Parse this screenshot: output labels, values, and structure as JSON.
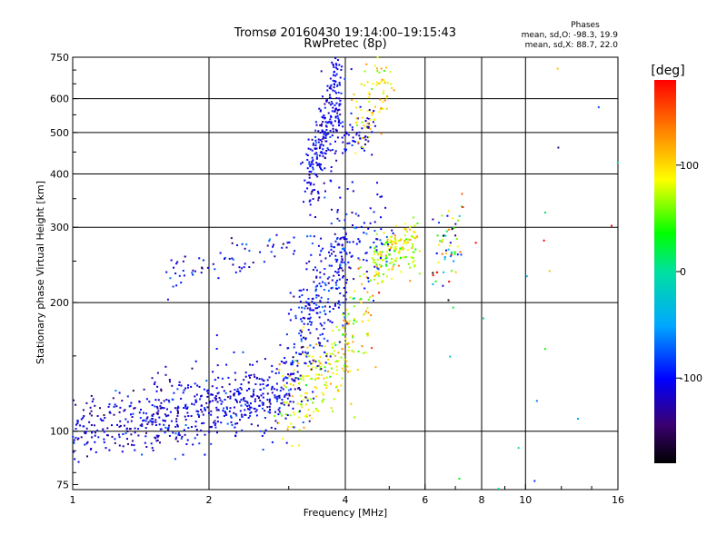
{
  "chart_data": {
    "type": "scatter",
    "title": "Tromsø 20160430 19:14:00–19:15:43",
    "subtitle": "RwPretec (8p)",
    "phase_box": {
      "heading": "Phases",
      "line_o": "mean, sd,O:  -98.3, 19.9",
      "line_x": "mean, sd,X:   88.7, 22.0"
    },
    "xlabel": "Frequency [MHz]",
    "ylabel": "Stationary phase Virtual Height [km]",
    "x_scale": "log",
    "y_scale": "log",
    "xlim": [
      1,
      16
    ],
    "ylim": [
      73,
      750
    ],
    "x_ticks": [
      {
        "value": 1,
        "label": "1"
      },
      {
        "value": 2,
        "label": "2"
      },
      {
        "value": 4,
        "label": "4"
      },
      {
        "value": 6,
        "label": "6"
      },
      {
        "value": 8,
        "label": "8"
      },
      {
        "value": 10,
        "label": "10"
      },
      {
        "value": 16,
        "label": "16"
      }
    ],
    "x_gridlines": [
      2,
      4,
      6,
      8,
      10
    ],
    "y_ticks": [
      {
        "value": 75,
        "label": "75"
      },
      {
        "value": 100,
        "label": "100"
      },
      {
        "value": 200,
        "label": "200"
      },
      {
        "value": 300,
        "label": "300"
      },
      {
        "value": 400,
        "label": "400"
      },
      {
        "value": 500,
        "label": "500"
      },
      {
        "value": 600,
        "label": "600"
      },
      {
        "value": 750,
        "label": "750"
      }
    ],
    "y_gridlines": [
      100,
      200,
      300,
      400,
      500,
      600
    ],
    "grid": true,
    "colorbar": {
      "label": "[deg]",
      "range": [
        -180,
        180
      ],
      "ticks": [
        {
          "value": 100,
          "label": "100"
        },
        {
          "value": 0,
          "label": "0"
        },
        {
          "value": -100,
          "label": "-100"
        }
      ]
    },
    "trace_segments": [
      {
        "f_from": 1.0,
        "f_to": 1.6,
        "h_from": 101,
        "h_to": 108,
        "spread": 0.035,
        "phase": -112,
        "phase_sd": 18,
        "count": 200
      },
      {
        "f_from": 1.5,
        "f_to": 2.3,
        "h_from": 108,
        "h_to": 118,
        "spread": 0.04,
        "phase": -110,
        "phase_sd": 18,
        "count": 240
      },
      {
        "f_from": 2.3,
        "f_to": 3.0,
        "h_from": 118,
        "h_to": 122,
        "spread": 0.045,
        "phase": -108,
        "phase_sd": 18,
        "count": 180
      },
      {
        "f_from": 2.9,
        "f_to": 4.1,
        "h_from": 115,
        "h_to": 160,
        "spread": 0.05,
        "phase": 85,
        "phase_sd": 25,
        "count": 190
      },
      {
        "f_from": 3.0,
        "f_to": 4.0,
        "h_from": 140,
        "h_to": 260,
        "spread": 0.08,
        "phase": -105,
        "phase_sd": 20,
        "count": 300
      },
      {
        "f_from": 4.0,
        "f_to": 4.6,
        "h_from": 170,
        "h_to": 200,
        "spread": 0.06,
        "phase": 80,
        "phase_sd": 40,
        "count": 60
      },
      {
        "f_from": 1.6,
        "f_to": 3.1,
        "h_from": 230,
        "h_to": 280,
        "spread": 0.02,
        "phase": -100,
        "phase_sd": 22,
        "count": 70
      },
      {
        "f_from": 3.3,
        "f_to": 3.9,
        "h_from": 380,
        "h_to": 650,
        "spread": 0.05,
        "phase": -105,
        "phase_sd": 15,
        "count": 260
      },
      {
        "f_from": 3.8,
        "f_to": 4.6,
        "h_from": 480,
        "h_to": 500,
        "spread": 0.03,
        "phase": -110,
        "phase_sd": 15,
        "count": 60
      },
      {
        "f_from": 4.2,
        "f_to": 5.0,
        "h_from": 550,
        "h_to": 640,
        "spread": 0.05,
        "phase": 90,
        "phase_sd": 20,
        "count": 80
      },
      {
        "f_from": 4.6,
        "f_to": 5.8,
        "h_from": 255,
        "h_to": 275,
        "spread": 0.03,
        "phase": 80,
        "phase_sd": 25,
        "count": 170
      },
      {
        "f_from": 3.8,
        "f_to": 5.0,
        "h_from": 270,
        "h_to": 300,
        "spread": 0.06,
        "phase": -100,
        "phase_sd": 20,
        "count": 90
      },
      {
        "f_from": 6.3,
        "f_to": 7.2,
        "h_from": 255,
        "h_to": 290,
        "spread": 0.05,
        "phase": 0,
        "phase_sd": 120,
        "count": 60
      },
      {
        "f_from": 6.4,
        "f_to": 16.0,
        "h_from": 75,
        "h_to": 650,
        "spread": 0.5,
        "phase": 60,
        "phase_sd": 140,
        "count": 35
      }
    ]
  }
}
